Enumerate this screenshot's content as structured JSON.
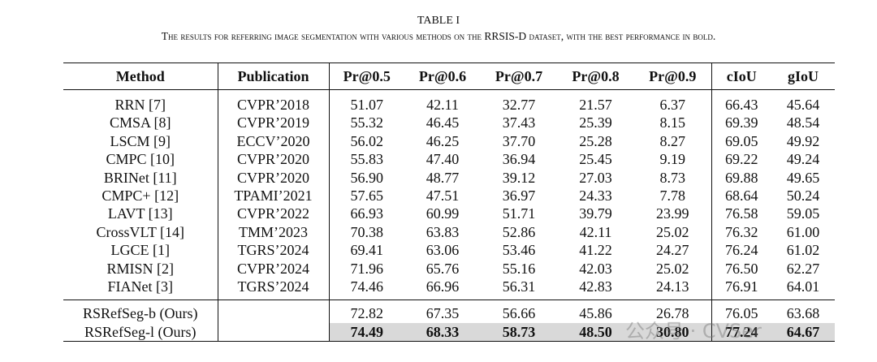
{
  "title": "TABLE I",
  "caption": "The results for referring image segmentation with various methods on the RRSIS-D dataset, with the best performance in bold.",
  "table": {
    "header": [
      "Method",
      "Publication",
      "Pr@0.5",
      "Pr@0.6",
      "Pr@0.7",
      "Pr@0.8",
      "Pr@0.9",
      "cIoU",
      "gIoU"
    ],
    "rows": [
      [
        "RRN [7]",
        "CVPR’2018",
        "51.07",
        "42.11",
        "32.77",
        "21.57",
        "6.37",
        "66.43",
        "45.64"
      ],
      [
        "CMSA [8]",
        "CVPR’2019",
        "55.32",
        "46.45",
        "37.43",
        "25.39",
        "8.15",
        "69.39",
        "48.54"
      ],
      [
        "LSCM [9]",
        "ECCV’2020",
        "56.02",
        "46.25",
        "37.70",
        "25.28",
        "8.27",
        "69.05",
        "49.92"
      ],
      [
        "CMPC [10]",
        "CVPR’2020",
        "55.83",
        "47.40",
        "36.94",
        "25.45",
        "9.19",
        "69.22",
        "49.24"
      ],
      [
        "BRINet [11]",
        "CVPR’2020",
        "56.90",
        "48.77",
        "39.12",
        "27.03",
        "8.73",
        "69.88",
        "49.65"
      ],
      [
        "CMPC+ [12]",
        "TPAMI’2021",
        "57.65",
        "47.51",
        "36.97",
        "24.33",
        "7.78",
        "68.64",
        "50.24"
      ],
      [
        "LAVT [13]",
        "CVPR’2022",
        "66.93",
        "60.99",
        "51.71",
        "39.79",
        "23.99",
        "76.58",
        "59.05"
      ],
      [
        "CrossVLT [14]",
        "TMM’2023",
        "70.38",
        "63.83",
        "52.86",
        "42.11",
        "25.02",
        "76.32",
        "61.00"
      ],
      [
        "LGCE [1]",
        "TGRS’2024",
        "69.41",
        "63.06",
        "53.46",
        "41.22",
        "24.27",
        "76.24",
        "61.02"
      ],
      [
        "RMISN [2]",
        "CVPR’2024",
        "71.96",
        "65.76",
        "55.16",
        "42.03",
        "25.02",
        "76.50",
        "62.27"
      ],
      [
        "FIANet [3]",
        "TGRS’2024",
        "74.46",
        "66.96",
        "56.31",
        "42.83",
        "24.13",
        "76.91",
        "64.01"
      ]
    ],
    "ours": [
      {
        "method": "RSRefSeg-b (Ours)",
        "values": [
          "72.82",
          "67.35",
          "56.66",
          "45.86",
          "26.78",
          "76.05",
          "63.68"
        ]
      },
      {
        "method": "RSRefSeg-l (Ours)",
        "values": [
          "74.49",
          "68.33",
          "58.73",
          "48.50",
          "30.80",
          "77.24",
          "64.67"
        ]
      }
    ]
  },
  "watermark": "公众号 · CVSer"
}
